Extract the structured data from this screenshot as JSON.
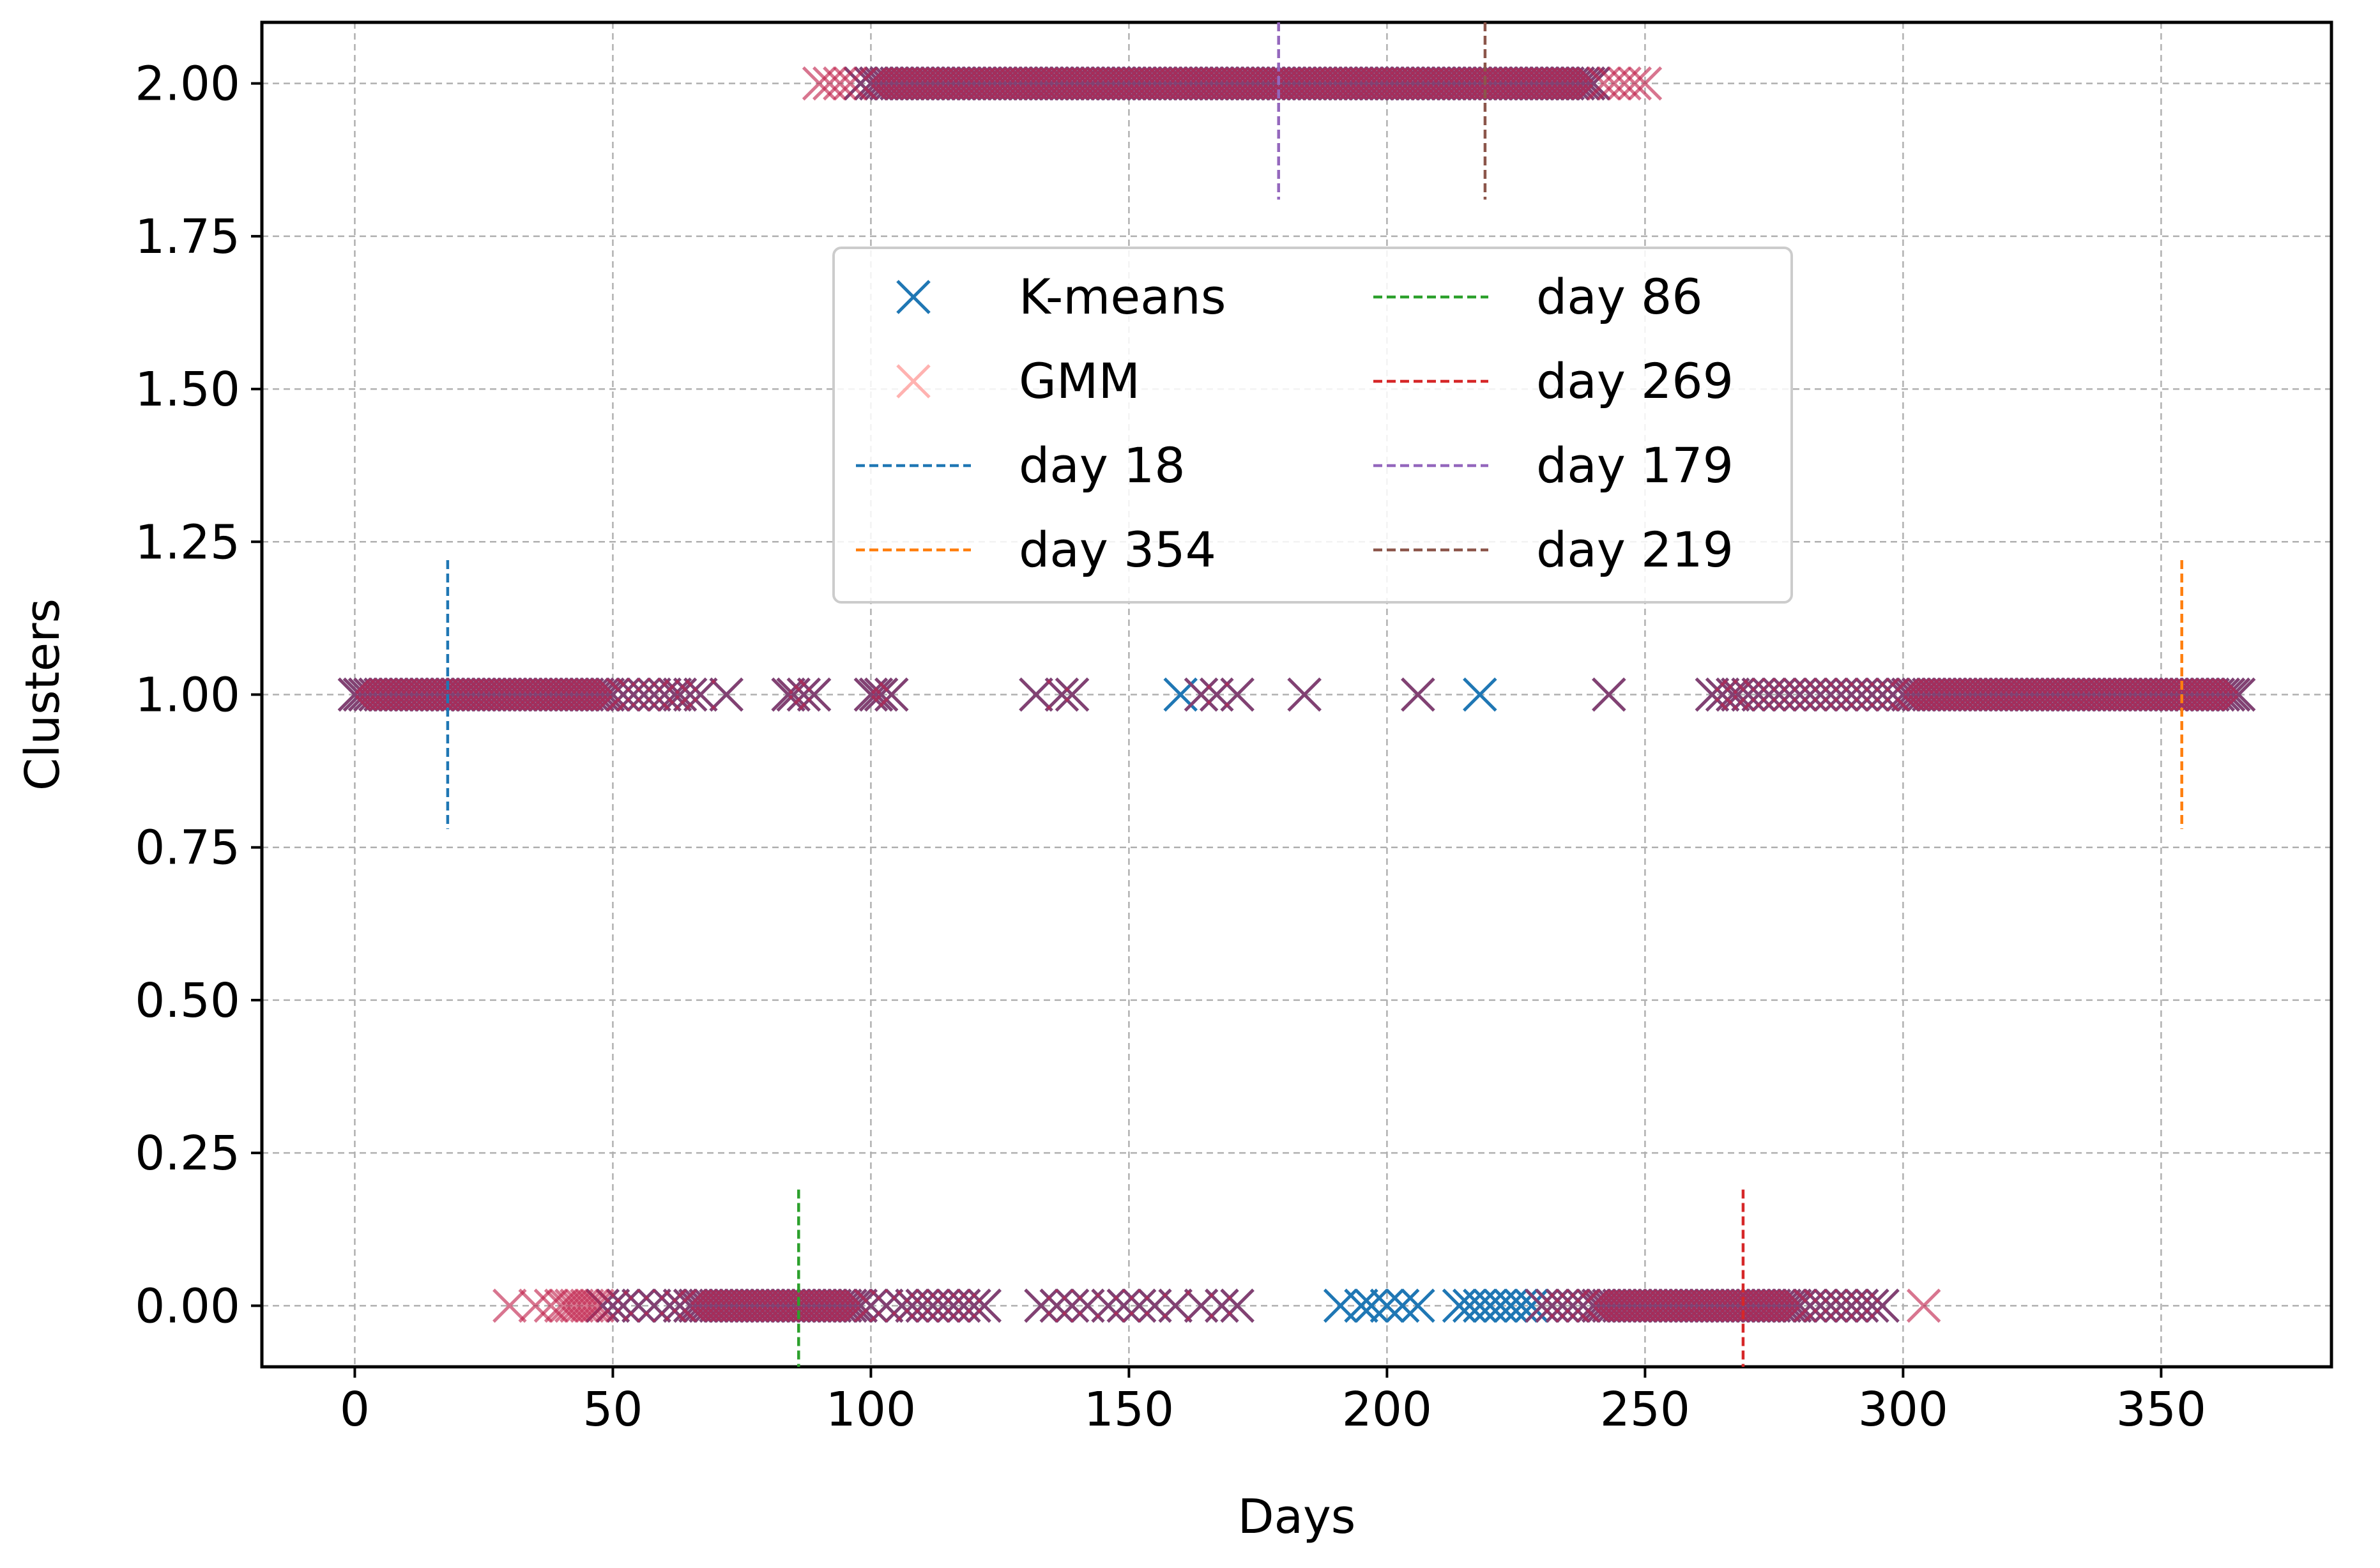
{
  "chart_data": {
    "type": "scatter",
    "title": "",
    "xlabel": "Days",
    "ylabel": "Clusters",
    "xlim": [
      -18,
      383
    ],
    "ylim": [
      -0.1,
      2.1
    ],
    "grid": true,
    "legend_placement": "upper-center",
    "xticks": [
      0,
      50,
      100,
      150,
      200,
      250,
      300,
      350
    ],
    "xtick_labels": [
      "0",
      "50",
      "100",
      "150",
      "200",
      "250",
      "300",
      "350"
    ],
    "yticks": [
      0.0,
      0.25,
      0.5,
      0.75,
      1.0,
      1.25,
      1.5,
      1.75,
      2.0
    ],
    "ytick_labels": [
      "0.00",
      "0.25",
      "0.50",
      "0.75",
      "1.00",
      "1.25",
      "1.50",
      "1.75",
      "2.00"
    ],
    "series": [
      {
        "name": "K-means",
        "marker": "x",
        "color": "#1f77b4",
        "points": [
          {
            "cluster": 2,
            "days": [
              98,
              100,
              101,
              102,
              103,
              104,
              105,
              106,
              107,
              108,
              109,
              110,
              111,
              112,
              113,
              114,
              115,
              116,
              117,
              118,
              119,
              120,
              121,
              122,
              123,
              124,
              125,
              126,
              127,
              128,
              129,
              130,
              131,
              132,
              133,
              134,
              135,
              136,
              137,
              138,
              139,
              140,
              141,
              142,
              143,
              144,
              145,
              146,
              147,
              148,
              149,
              150,
              151,
              152,
              153,
              154,
              155,
              156,
              157,
              158,
              159,
              160,
              161,
              162,
              163,
              164,
              165,
              166,
              167,
              168,
              169,
              170,
              171,
              172,
              173,
              174,
              175,
              176,
              177,
              178,
              179,
              180,
              181,
              182,
              183,
              184,
              185,
              186,
              187,
              188,
              189,
              190,
              191,
              192,
              193,
              194,
              195,
              196,
              197,
              198,
              199,
              200,
              201,
              202,
              203,
              204,
              205,
              206,
              207,
              208,
              209,
              210,
              211,
              212,
              213,
              214,
              215,
              216,
              217,
              218,
              219,
              220,
              221,
              222,
              223,
              224,
              225,
              226,
              227,
              228,
              229,
              230,
              231,
              232,
              233,
              234,
              235,
              236,
              237,
              238,
              239,
              240
            ]
          },
          {
            "cluster": 1,
            "days": [
              0,
              1,
              2,
              3,
              4,
              5,
              6,
              7,
              8,
              9,
              10,
              11,
              12,
              13,
              14,
              15,
              16,
              17,
              18,
              19,
              20,
              21,
              22,
              23,
              24,
              25,
              26,
              27,
              28,
              29,
              30,
              31,
              32,
              33,
              34,
              35,
              36,
              37,
              38,
              39,
              40,
              41,
              42,
              43,
              44,
              45,
              46,
              47,
              48,
              49,
              50,
              52,
              54,
              56,
              58,
              60,
              62,
              63,
              65,
              67,
              72,
              84,
              85,
              87,
              89,
              100,
              101,
              102,
              104,
              132,
              137,
              139,
              160,
              164,
              167,
              171,
              184,
              206,
              218,
              243,
              263,
              265,
              267,
              268,
              270,
              272,
              274,
              276,
              278,
              280,
              282,
              284,
              286,
              288,
              290,
              292,
              294,
              296,
              298,
              300,
              301,
              302,
              303,
              304,
              305,
              306,
              307,
              308,
              309,
              310,
              311,
              312,
              313,
              314,
              315,
              316,
              317,
              318,
              319,
              320,
              321,
              322,
              323,
              324,
              325,
              326,
              327,
              328,
              329,
              330,
              331,
              332,
              333,
              334,
              335,
              336,
              337,
              338,
              339,
              340,
              341,
              342,
              343,
              344,
              345,
              346,
              347,
              348,
              349,
              350,
              351,
              352,
              353,
              354,
              355,
              356,
              357,
              358,
              359,
              360,
              361,
              362,
              363,
              364,
              365
            ]
          },
          {
            "cluster": 0,
            "days": [
              48,
              50,
              52,
              55,
              58,
              61,
              63,
              65,
              66,
              67,
              68,
              69,
              70,
              71,
              72,
              73,
              74,
              75,
              76,
              77,
              78,
              79,
              80,
              81,
              82,
              83,
              84,
              85,
              86,
              87,
              88,
              89,
              90,
              91,
              92,
              93,
              94,
              95,
              96,
              97,
              98,
              100,
              103,
              106,
              108,
              110,
              112,
              114,
              116,
              118,
              120,
              122,
              133,
              136,
              139,
              142,
              146,
              149,
              152,
              155,
              159,
              164,
              168,
              171,
              191,
              195,
              197,
              200,
              203,
              206,
              214,
              216,
              218,
              220,
              222,
              224,
              226,
              228,
              230,
              232,
              234,
              236,
              238,
              240,
              241,
              242,
              243,
              244,
              245,
              246,
              247,
              248,
              249,
              250,
              251,
              252,
              253,
              254,
              255,
              256,
              257,
              258,
              259,
              260,
              261,
              262,
              263,
              264,
              265,
              266,
              267,
              268,
              269,
              270,
              271,
              272,
              273,
              274,
              275,
              276,
              277,
              278,
              279,
              280,
              282,
              284,
              286,
              288,
              290,
              292,
              294,
              296
            ]
          }
        ]
      },
      {
        "name": "GMM",
        "marker": "x",
        "color": "#c0204a",
        "points": [
          {
            "cluster": 2,
            "days": [
              90,
              92,
              94,
              96,
              98,
              100,
              101,
              102,
              103,
              104,
              105,
              106,
              107,
              108,
              109,
              110,
              111,
              112,
              113,
              114,
              115,
              116,
              117,
              118,
              119,
              120,
              121,
              122,
              123,
              124,
              125,
              126,
              127,
              128,
              129,
              130,
              131,
              132,
              133,
              134,
              135,
              136,
              137,
              138,
              139,
              140,
              141,
              142,
              143,
              144,
              145,
              146,
              147,
              148,
              149,
              150,
              151,
              152,
              153,
              154,
              155,
              156,
              157,
              158,
              159,
              160,
              161,
              162,
              163,
              164,
              165,
              166,
              167,
              168,
              169,
              170,
              171,
              172,
              173,
              174,
              175,
              176,
              177,
              178,
              179,
              180,
              181,
              182,
              183,
              184,
              185,
              186,
              187,
              188,
              189,
              190,
              191,
              192,
              193,
              194,
              195,
              196,
              197,
              198,
              199,
              200,
              201,
              202,
              203,
              204,
              205,
              206,
              207,
              208,
              209,
              210,
              211,
              212,
              213,
              214,
              215,
              216,
              217,
              218,
              219,
              220,
              221,
              222,
              223,
              224,
              225,
              226,
              227,
              228,
              229,
              230,
              231,
              232,
              233,
              234,
              235,
              236,
              237,
              238,
              239,
              240,
              242,
              244,
              246,
              248,
              250
            ]
          },
          {
            "cluster": 1,
            "days": [
              0,
              1,
              2,
              3,
              4,
              5,
              6,
              7,
              8,
              9,
              10,
              11,
              12,
              13,
              14,
              15,
              16,
              17,
              18,
              19,
              20,
              21,
              22,
              23,
              24,
              25,
              26,
              27,
              28,
              29,
              30,
              31,
              32,
              33,
              34,
              35,
              36,
              37,
              38,
              39,
              40,
              41,
              42,
              43,
              44,
              45,
              46,
              47,
              48,
              49,
              50,
              52,
              54,
              56,
              58,
              60,
              62,
              63,
              65,
              67,
              72,
              84,
              85,
              87,
              89,
              100,
              101,
              102,
              104,
              132,
              137,
              139,
              164,
              167,
              171,
              184,
              206,
              243,
              263,
              265,
              267,
              268,
              270,
              272,
              274,
              276,
              278,
              280,
              282,
              284,
              286,
              288,
              290,
              292,
              294,
              296,
              298,
              300,
              301,
              302,
              303,
              304,
              305,
              306,
              307,
              308,
              309,
              310,
              311,
              312,
              313,
              314,
              315,
              316,
              317,
              318,
              319,
              320,
              321,
              322,
              323,
              324,
              325,
              326,
              327,
              328,
              329,
              330,
              331,
              332,
              333,
              334,
              335,
              336,
              337,
              338,
              339,
              340,
              341,
              342,
              343,
              344,
              345,
              346,
              347,
              348,
              349,
              350,
              351,
              352,
              353,
              354,
              355,
              356,
              357,
              358,
              359,
              360,
              361,
              362,
              363,
              364,
              365
            ]
          },
          {
            "cluster": 0,
            "days": [
              30,
              35,
              38,
              40,
              41,
              42,
              43,
              44,
              45,
              46,
              47,
              48,
              50,
              52,
              55,
              58,
              61,
              63,
              65,
              66,
              67,
              68,
              69,
              70,
              71,
              72,
              73,
              74,
              75,
              76,
              77,
              78,
              79,
              80,
              81,
              82,
              83,
              84,
              85,
              86,
              87,
              88,
              89,
              90,
              91,
              92,
              93,
              94,
              95,
              96,
              97,
              98,
              100,
              103,
              106,
              108,
              110,
              112,
              114,
              116,
              118,
              120,
              122,
              133,
              136,
              139,
              142,
              146,
              149,
              152,
              155,
              159,
              164,
              168,
              171,
              230,
              232,
              234,
              236,
              238,
              240,
              241,
              242,
              243,
              244,
              245,
              246,
              247,
              248,
              249,
              250,
              251,
              252,
              253,
              254,
              255,
              256,
              257,
              258,
              259,
              260,
              261,
              262,
              263,
              264,
              265,
              266,
              267,
              268,
              269,
              270,
              271,
              272,
              273,
              274,
              275,
              276,
              277,
              278,
              279,
              280,
              282,
              284,
              286,
              288,
              290,
              292,
              294,
              296,
              304
            ]
          }
        ]
      }
    ],
    "vlines": [
      {
        "label": "day 18",
        "x": 18,
        "y_range": [
          0.78,
          1.22
        ],
        "color": "#1f77b4"
      },
      {
        "label": "day 354",
        "x": 354,
        "y_range": [
          0.78,
          1.22
        ],
        "color": "#ff7f0e"
      },
      {
        "label": "day 86",
        "x": 86,
        "y_range": [
          -0.1,
          0.19
        ],
        "color": "#2ca02c"
      },
      {
        "label": "day 269",
        "x": 269,
        "y_range": [
          -0.1,
          0.19
        ],
        "color": "#d62728"
      },
      {
        "label": "day 179",
        "x": 179,
        "y_range": [
          1.81,
          2.1
        ],
        "color": "#9467bd"
      },
      {
        "label": "day 219",
        "x": 219,
        "y_range": [
          1.81,
          2.1
        ],
        "color": "#8c564b"
      }
    ],
    "legend": {
      "entries": [
        {
          "label": "K-means",
          "kind": "marker",
          "color": "#1f77b4",
          "alpha": 1.0
        },
        {
          "label": "GMM",
          "kind": "marker",
          "color": "#ff9896",
          "alpha": 0.75
        },
        {
          "label": "day 18",
          "kind": "line",
          "color": "#1f77b4"
        },
        {
          "label": "day 354",
          "kind": "line",
          "color": "#ff7f0e"
        },
        {
          "label": "day 86",
          "kind": "line",
          "color": "#2ca02c"
        },
        {
          "label": "day 269",
          "kind": "line",
          "color": "#d62728"
        },
        {
          "label": "day 179",
          "kind": "line",
          "color": "#9467bd"
        },
        {
          "label": "day 219",
          "kind": "line",
          "color": "#8c564b"
        }
      ]
    }
  }
}
